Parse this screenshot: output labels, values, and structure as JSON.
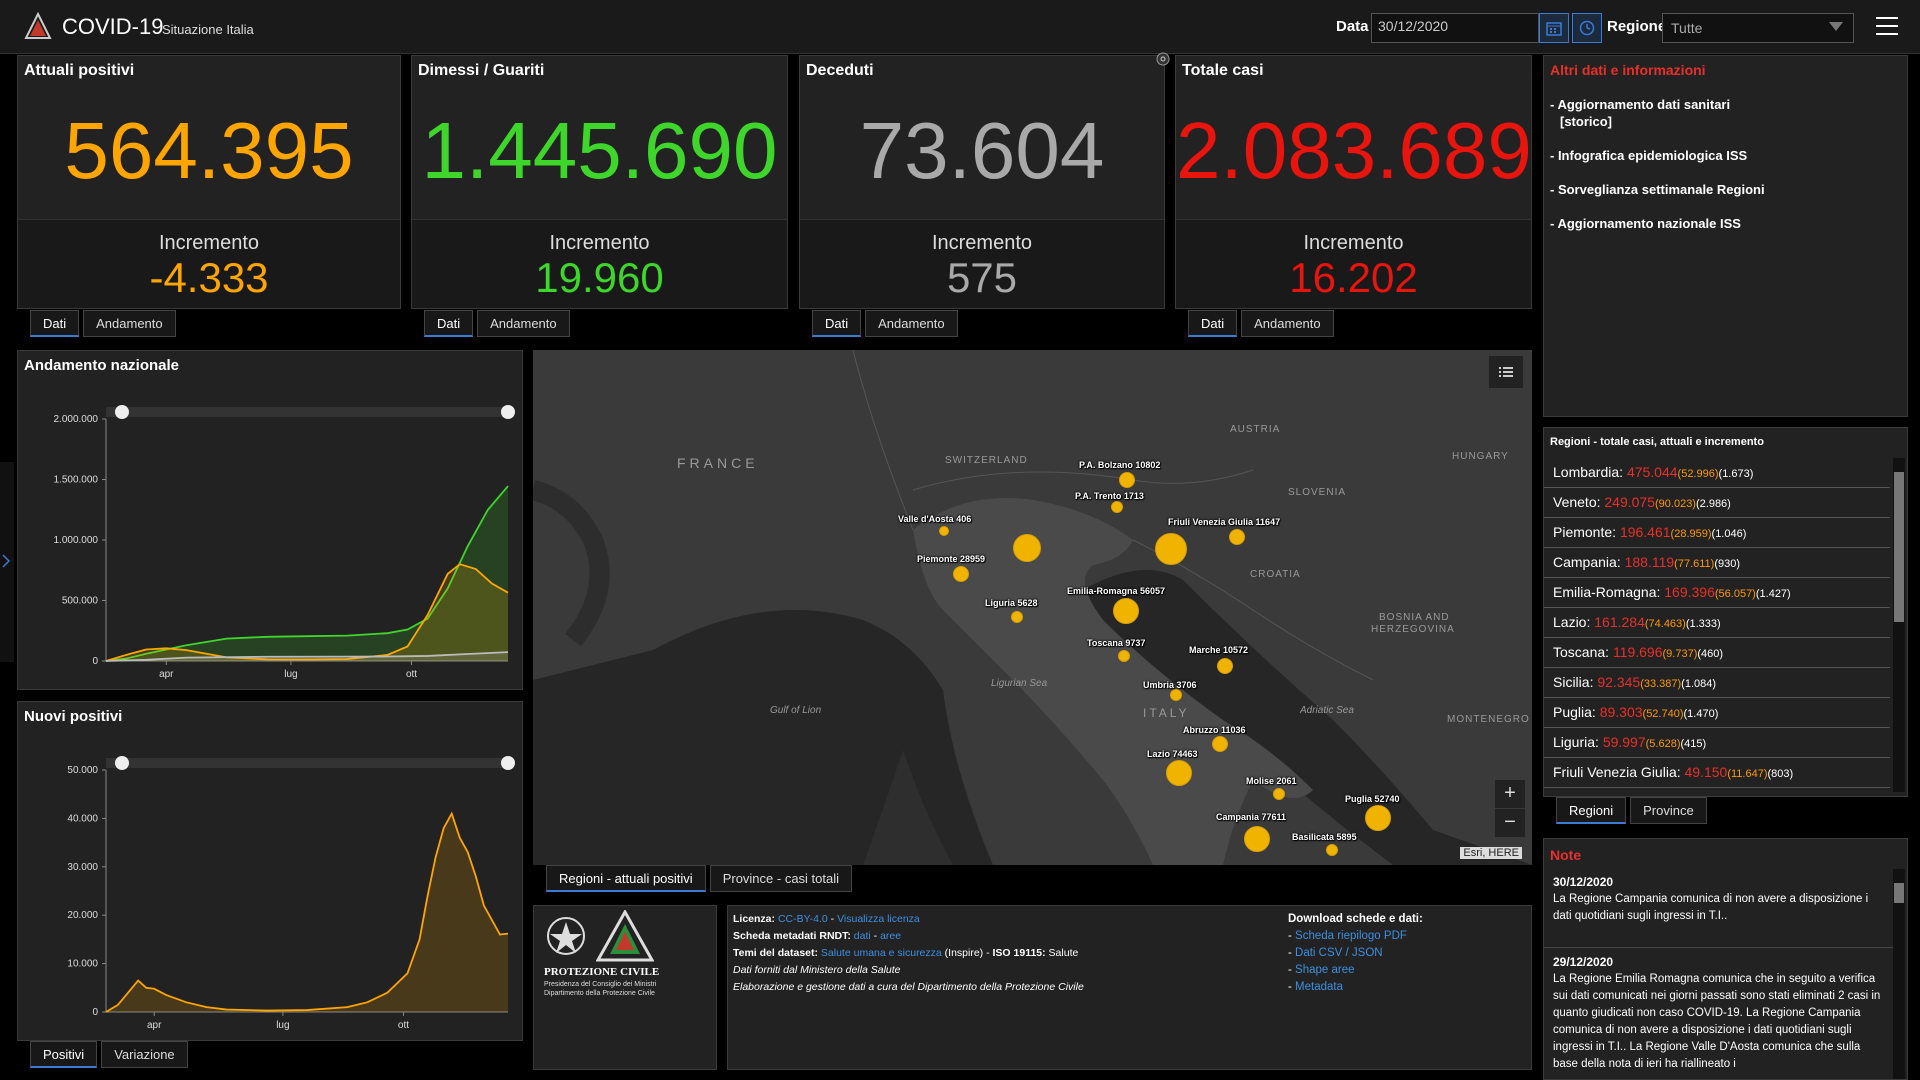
{
  "header": {
    "title": "COVID-19",
    "subtitle": "Situazione Italia",
    "date_label": "Data",
    "date_value": "30/12/2020",
    "region_label": "Regione",
    "region_value": "Tutte"
  },
  "stats": [
    {
      "label": "Attuali positivi",
      "value": "564.395",
      "inc_label": "Incremento",
      "inc_value": "-4.333",
      "color": "#ffa500"
    },
    {
      "label": "Dimessi / Guariti",
      "value": "1.445.690",
      "inc_label": "Incremento",
      "inc_value": "19.960",
      "color": "#3fd62b"
    },
    {
      "label": "Deceduti",
      "value": "73.604",
      "inc_label": "Incremento",
      "inc_value": "575",
      "color": "#a9a9a9"
    },
    {
      "label": "Totale casi",
      "value": "2.083.689",
      "inc_label": "Incremento",
      "inc_value": "16.202",
      "color": "#e8140e"
    }
  ],
  "stat_tabs": [
    "Dati",
    "Andamento"
  ],
  "info": {
    "title": "Altri dati e informazioni",
    "items": [
      "- Aggiornamento dati sanitari",
      "[storico]",
      "- Infografica epidemiologica ISS",
      "- Sorveglianza settimanale Regioni",
      "- Aggiornamento nazionale ISS"
    ]
  },
  "chart_data": [
    {
      "type": "area",
      "title": "Andamento nazionale",
      "xlabel": "",
      "ylabel": "",
      "ylim": [
        0,
        2000000
      ],
      "yticks": [
        "2.000.000",
        "1.500.000",
        "1.000.000",
        "500.000",
        "0"
      ],
      "xticks": [
        "apr",
        "lug",
        "ott"
      ],
      "series": [
        {
          "color": "#3fd62b",
          "x": [
            0,
            0.05,
            0.1,
            0.2,
            0.3,
            0.4,
            0.5,
            0.6,
            0.7,
            0.75,
            0.8,
            0.85,
            0.9,
            0.95,
            1.0
          ],
          "values": [
            0,
            20000,
            60000,
            130000,
            185000,
            200000,
            205000,
            210000,
            230000,
            260000,
            350000,
            600000,
            950000,
            1250000,
            1445690
          ]
        },
        {
          "color": "#ffa500",
          "x": [
            0,
            0.05,
            0.1,
            0.15,
            0.2,
            0.25,
            0.3,
            0.4,
            0.5,
            0.6,
            0.7,
            0.75,
            0.8,
            0.85,
            0.88,
            0.92,
            0.96,
            1.0
          ],
          "values": [
            0,
            50000,
            95000,
            105000,
            90000,
            60000,
            30000,
            14000,
            13000,
            16000,
            50000,
            120000,
            380000,
            720000,
            800000,
            760000,
            640000,
            564395
          ]
        },
        {
          "color": "#bbbbbb",
          "x": [
            0,
            0.1,
            0.2,
            0.4,
            0.6,
            0.7,
            0.8,
            0.9,
            1.0
          ],
          "values": [
            0,
            10000,
            28000,
            35000,
            36000,
            37000,
            42000,
            58000,
            73604
          ]
        }
      ]
    },
    {
      "type": "area",
      "title": "Nuovi positivi",
      "xlabel": "",
      "ylabel": "",
      "ylim": [
        0,
        50000
      ],
      "yticks": [
        "50.000",
        "40.000",
        "30.000",
        "20.000",
        "10.000",
        "0"
      ],
      "xticks": [
        "apr",
        "lug",
        "ott"
      ],
      "series": [
        {
          "color": "#ffa500",
          "x": [
            0,
            0.03,
            0.06,
            0.08,
            0.1,
            0.12,
            0.15,
            0.2,
            0.25,
            0.3,
            0.4,
            0.5,
            0.6,
            0.65,
            0.7,
            0.75,
            0.78,
            0.8,
            0.82,
            0.84,
            0.86,
            0.88,
            0.9,
            0.92,
            0.94,
            0.96,
            0.98,
            1.0
          ],
          "values": [
            0,
            1500,
            4500,
            6500,
            5000,
            4800,
            3500,
            2000,
            1000,
            500,
            300,
            400,
            1000,
            2000,
            4000,
            8000,
            15000,
            24000,
            32000,
            38000,
            41000,
            36000,
            33000,
            28000,
            22000,
            19000,
            16000,
            16202
          ]
        }
      ]
    }
  ],
  "chart_tabs": [
    "Positivi",
    "Variazione"
  ],
  "map": {
    "countries": [
      "FRANCE",
      "SWITZERLAND",
      "AUSTRIA",
      "HUNGARY",
      "SLOVENIA",
      "CROATIA",
      "BOSNIA AND",
      "HERZEGOVINA",
      "MONTENEGRO",
      "ITALY"
    ],
    "seas": [
      "Ligurian Sea",
      "Gulf of Lion",
      "Adriatic Sea"
    ],
    "cities": [
      {
        "name": "P.A. Bolzano",
        "value": "10802"
      },
      {
        "name": "P.A. Trento",
        "value": "1713"
      },
      {
        "name": "Valle d'Aosta",
        "value": "406"
      },
      {
        "name": "Friuli Venezia Giulia",
        "value": "11647"
      },
      {
        "name": "Piemonte",
        "value": "28959"
      },
      {
        "name": "Liguria",
        "value": "5628"
      },
      {
        "name": "Emilia-Romagna",
        "value": "56057"
      },
      {
        "name": "Toscana",
        "value": "9737"
      },
      {
        "name": "Marche",
        "value": "10572"
      },
      {
        "name": "Umbria",
        "value": "3706"
      },
      {
        "name": "Abruzzo",
        "value": "11036"
      },
      {
        "name": "Lazio",
        "value": "74463"
      },
      {
        "name": "Molise",
        "value": "2061"
      },
      {
        "name": "Puglia",
        "value": "52740"
      },
      {
        "name": "Campania",
        "value": "77611"
      },
      {
        "name": "Basilicata",
        "value": "5895"
      }
    ],
    "attribution": "Esri, HERE",
    "zoom_in": "+",
    "zoom_out": "−"
  },
  "map_tabs": [
    "Regioni - attuali positivi",
    "Province - casi totali"
  ],
  "regions": {
    "title": "Regioni - totale casi, attuali e incremento",
    "rows": [
      {
        "name": "Lombardia:",
        "total": "475.044",
        "active": "(52.996)",
        "inc": "(1.673)"
      },
      {
        "name": "Veneto:",
        "total": "249.075",
        "active": "(90.023)",
        "inc": "(2.986)"
      },
      {
        "name": "Piemonte:",
        "total": "196.461",
        "active": "(28.959)",
        "inc": "(1.046)"
      },
      {
        "name": "Campania:",
        "total": "188.119",
        "active": "(77.611)",
        "inc": "(930)"
      },
      {
        "name": "Emilia-Romagna:",
        "total": "169.396",
        "active": "(56.057)",
        "inc": "(1.427)"
      },
      {
        "name": "Lazio:",
        "total": "161.284",
        "active": "(74.463)",
        "inc": "(1.333)"
      },
      {
        "name": "Toscana:",
        "total": "119.696",
        "active": "(9.737)",
        "inc": "(460)"
      },
      {
        "name": "Sicilia:",
        "total": "92.345",
        "active": "(33.387)",
        "inc": "(1.084)"
      },
      {
        "name": "Puglia:",
        "total": "89.303",
        "active": "(52.740)",
        "inc": "(1.470)"
      },
      {
        "name": "Liguria:",
        "total": "59.997",
        "active": "(5.628)",
        "inc": "(415)"
      },
      {
        "name": "Friuli Venezia Giulia:",
        "total": "49.150",
        "active": "(11.647)",
        "inc": "(803)"
      }
    ],
    "tabs": [
      "Regioni",
      "Province"
    ]
  },
  "notes": {
    "title": "Note",
    "entries": [
      {
        "date": "30/12/2020",
        "text": "La Regione Campania comunica di non avere a disposizione i dati quotidiani sugli ingressi in T.I.."
      },
      {
        "date": "29/12/2020",
        "text": "La Regione Emilia Romagna comunica che in seguito a verifica sui dati comunicati nei giorni passati sono stati eliminati 2 casi in quanto giudicati non caso COVID-19. La Regione Campania comunica di non avere a disposizione i dati quotidiani sugli ingressi in T.I.. La Regione Valle D'Aosta comunica che sulla base della nota di ieri ha riallineato i"
      }
    ]
  },
  "footer": {
    "logo_text1": "PROTEZIONE CIVILE",
    "logo_text2": "Presidenza del Consiglio dei Ministri",
    "logo_text3": "Dipartimento della Protezione Civile",
    "lic_label": "Licenza:",
    "lic_link1": "CC-BY-4.0",
    "lic_sep": " - ",
    "lic_link2": "Visualizza licenza",
    "meta_label": "Scheda metadati RNDT:",
    "meta_link1": "dati",
    "meta_link2": "aree",
    "themes_label": "Temi del dataset:",
    "themes_link": "Salute umana e sicurezza",
    "themes_rest": " (Inspire) - ",
    "iso": "ISO 19115:",
    "iso_val": " Salute",
    "line4": "Dati forniti dal Ministero della Salute",
    "line5": "Elaborazione e gestione dati a cura del Dipartimento della Protezione Civile",
    "download_title": "Download schede e dati:",
    "downloads": [
      "Scheda riepilogo PDF",
      "Dati CSV / JSON",
      "Shape aree",
      "Metadata"
    ]
  },
  "icons": [
    "logo-icon",
    "calendar-icon",
    "clock-icon",
    "hamburger-menu-icon",
    "list-icon",
    "settings-icon"
  ]
}
